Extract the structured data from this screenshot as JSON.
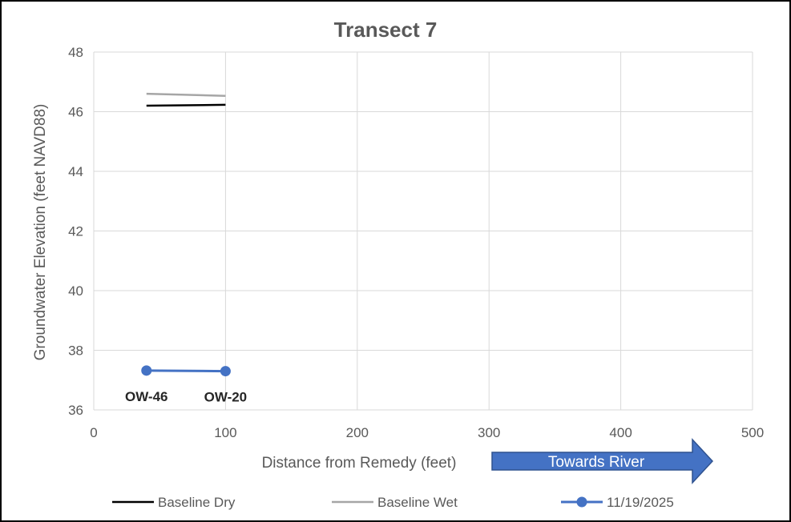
{
  "chart_data": {
    "type": "line",
    "title": "Transect 7",
    "xlabel": "Distance from Remedy (feet)",
    "ylabel": "Groundwater Elevation (feet NAVD88)",
    "xlim": [
      0,
      500
    ],
    "ylim": [
      36,
      48
    ],
    "x_ticks": [
      0,
      100,
      200,
      300,
      400,
      500
    ],
    "y_ticks": [
      36,
      38,
      40,
      42,
      44,
      46,
      48
    ],
    "grid": true,
    "legend_position": "bottom",
    "series": [
      {
        "name": "Baseline Dry",
        "color": "#000000",
        "marker": "none",
        "x": [
          40,
          100
        ],
        "y": [
          46.2,
          46.23
        ]
      },
      {
        "name": "Baseline Wet",
        "color": "#a6a6a6",
        "marker": "none",
        "x": [
          40,
          100
        ],
        "y": [
          46.6,
          46.53
        ]
      },
      {
        "name": "11/19/2025",
        "color": "#4472c4",
        "marker": "circle",
        "x": [
          40,
          100
        ],
        "y": [
          37.32,
          37.3
        ]
      }
    ],
    "point_labels": [
      {
        "text": "OW-46",
        "x": 40
      },
      {
        "text": "OW-20",
        "x": 100
      }
    ],
    "annotation": {
      "text": "Towards River",
      "color": "#4472c4"
    }
  }
}
